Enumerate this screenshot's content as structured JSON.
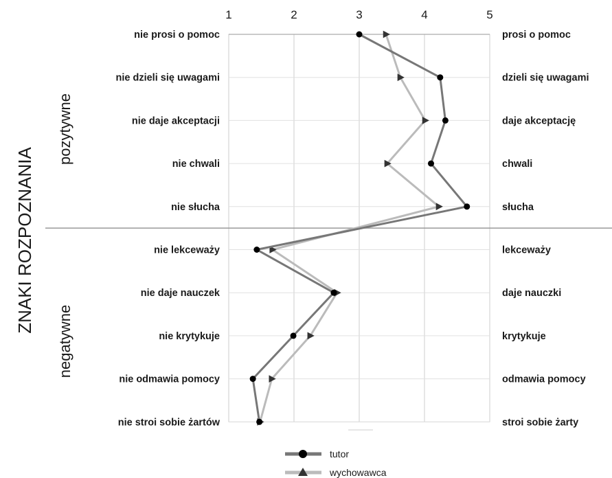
{
  "chart_data": {
    "type": "line",
    "xlim": [
      1,
      5
    ],
    "x_ticks": [
      "1",
      "2",
      "3",
      "4",
      "5"
    ],
    "rows": [
      {
        "left": "nie prosi o pomoc",
        "right": "prosi o pomoc"
      },
      {
        "left": "nie dzieli się uwagami",
        "right": "dzieli się uwagami"
      },
      {
        "left": "nie daje akceptacji",
        "right": "daje akceptację"
      },
      {
        "left": "nie chwali",
        "right": "chwali"
      },
      {
        "left": "nie słucha",
        "right": "słucha"
      },
      {
        "left": "nie lekceważy",
        "right": "lekceważy"
      },
      {
        "left": "nie daje nauczek",
        "right": "daje nauczki"
      },
      {
        "left": "nie krytykuje",
        "right": "krytykuje"
      },
      {
        "left": "nie odmawia pomocy",
        "right": "odmawia pomocy"
      },
      {
        "left": "nie stroi sobie żartów",
        "right": "stroi sobie żarty"
      }
    ],
    "series": [
      {
        "name": "tutor",
        "marker": "circle",
        "color": "#777777",
        "values": [
          3.0,
          4.24,
          4.32,
          4.1,
          4.65,
          1.43,
          2.61,
          1.99,
          1.37,
          1.47
        ]
      },
      {
        "name": "wychowawca",
        "marker": "triangle",
        "color": "#bbbbbb",
        "values": [
          3.41,
          3.63,
          4.01,
          3.43,
          4.22,
          1.67,
          2.66,
          2.25,
          1.66,
          1.48
        ]
      }
    ],
    "group_labels": {
      "top": "pozytywne",
      "bottom": "negatywne"
    },
    "side_title": "ZNAKI ROZPOZNANIA",
    "grid": true,
    "legend_position": "bottom-center"
  }
}
